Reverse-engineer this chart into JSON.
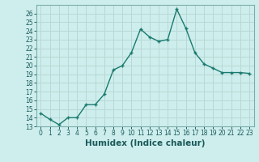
{
  "xlabel": "Humidex (Indice chaleur)",
  "x": [
    0,
    1,
    2,
    3,
    4,
    5,
    6,
    7,
    8,
    9,
    10,
    11,
    12,
    13,
    14,
    15,
    16,
    17,
    18,
    19,
    20,
    21,
    22,
    23
  ],
  "y": [
    14.5,
    13.8,
    13.2,
    14.0,
    14.0,
    15.5,
    15.5,
    16.7,
    19.5,
    20.0,
    21.5,
    24.2,
    23.3,
    22.8,
    23.0,
    26.5,
    24.3,
    21.5,
    20.2,
    19.7,
    19.2,
    19.2,
    19.2,
    19.1
  ],
  "line_color": "#1a7a6e",
  "marker": "+",
  "marker_size": 3.5,
  "line_width": 1.0,
  "background_color": "#ceeeed",
  "grid_color": "#b8d8d5",
  "ylim": [
    13,
    27
  ],
  "yticks": [
    13,
    14,
    15,
    16,
    17,
    18,
    19,
    20,
    21,
    22,
    23,
    24,
    25,
    26
  ],
  "xlim": [
    -0.5,
    23.5
  ],
  "tick_fontsize": 5.5,
  "label_fontsize": 7.5
}
